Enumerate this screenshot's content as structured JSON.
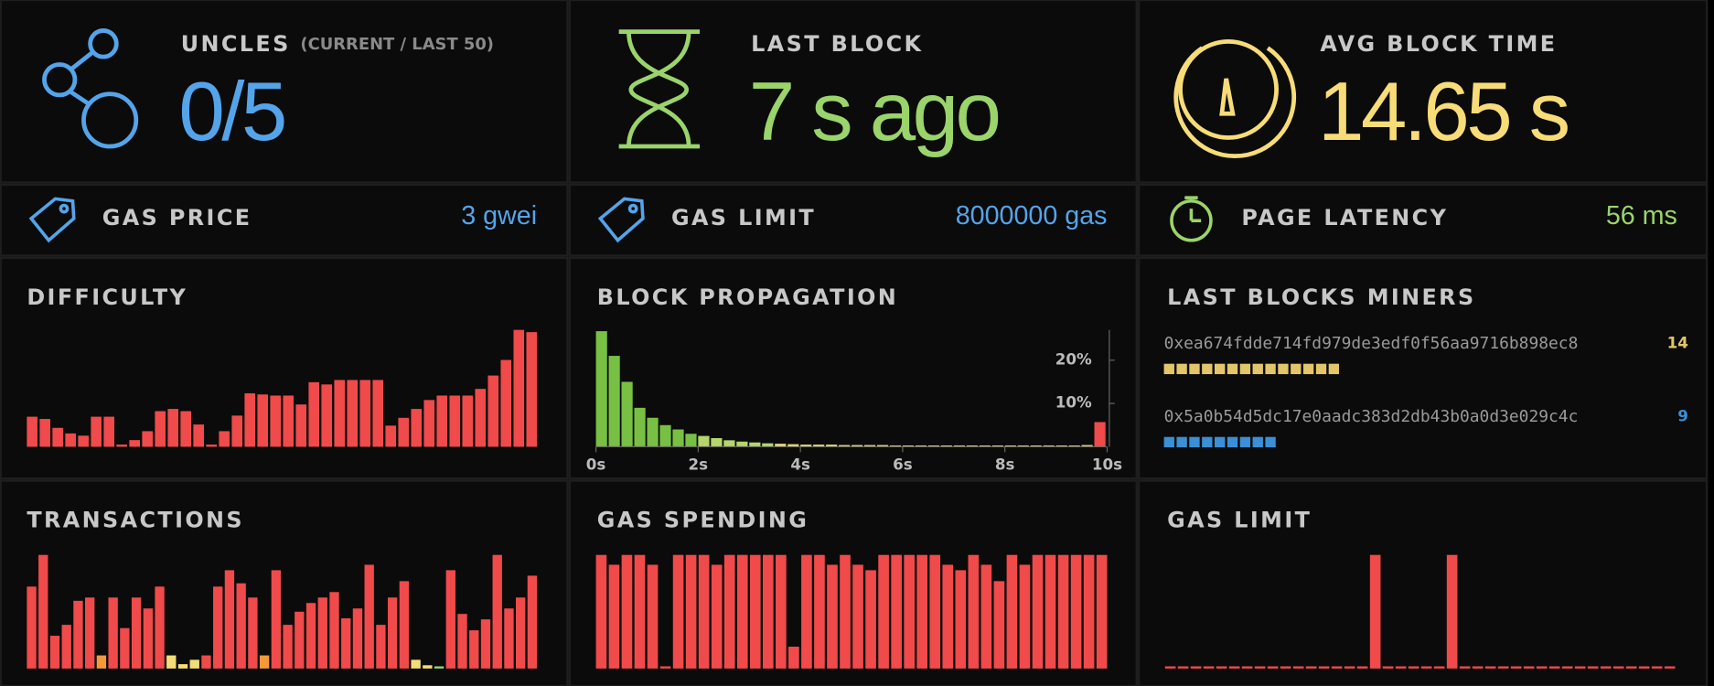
{
  "stats": [
    {
      "title": "UNCLES",
      "subtitle": "(CURRENT / LAST 50)",
      "value": "0/5",
      "color": "#54a4ea"
    },
    {
      "title": "LAST BLOCK",
      "value": "7 s ago",
      "color": "#9ad46a"
    },
    {
      "title": "AVG BLOCK TIME",
      "value": "14.65 s",
      "color": "#f7dc78"
    }
  ],
  "small_stats": [
    {
      "title": "GAS PRICE",
      "value": "3 gwei",
      "color": "#54a4ea"
    },
    {
      "title": "GAS LIMIT",
      "value": "8000000 gas",
      "color": "#54a4ea"
    },
    {
      "title": "PAGE LATENCY",
      "value": "56 ms",
      "color": "#9ad46a"
    }
  ],
  "difficulty": {
    "title": "DIFFICULTY",
    "color": "#f04a4a",
    "values": [
      27,
      25,
      17,
      12,
      10,
      27,
      27,
      2,
      6,
      14,
      32,
      34,
      32,
      20,
      2,
      14,
      28,
      48,
      47,
      46,
      46,
      38,
      58,
      56,
      60,
      60,
      60,
      60,
      19,
      26,
      34,
      42,
      46,
      46,
      46,
      52,
      64,
      78,
      105,
      103
    ]
  },
  "block_propagation": {
    "title": "BLOCK PROPAGATION",
    "type": "histogram",
    "bins": [
      0,
      0.25,
      0.5,
      0.75,
      1,
      1.25,
      1.5,
      1.75,
      2,
      2.25,
      2.5,
      2.75,
      3,
      3.25,
      3.5,
      3.75,
      4,
      4.25,
      4.5,
      4.75,
      5,
      5.25,
      5.5,
      5.75,
      6,
      6.25,
      6.5,
      6.75,
      7,
      7.25,
      7.5,
      7.75,
      8,
      8.25,
      8.5,
      8.75,
      9,
      9.25,
      9.5,
      9.75,
      10
    ],
    "values": [
      26.7,
      21,
      15,
      9,
      6.7,
      5,
      4,
      3,
      2.5,
      2,
      1.5,
      1.2,
      1,
      0.8,
      0.7,
      0.6,
      0.5,
      0.5,
      0.5,
      0.4,
      0.4,
      0.4,
      0.4,
      0.3,
      0.3,
      0.3,
      0.3,
      0.3,
      0.3,
      0.3,
      0.3,
      0.3,
      0.3,
      0.3,
      0.3,
      0.3,
      0.3,
      0.3,
      0.4,
      5.7
    ],
    "colors": [
      "#78c043",
      "#78c043",
      "#78c043",
      "#78c043",
      "#78c043",
      "#78c043",
      "#78c043",
      "#78c043",
      "#b5d66a",
      "#b5d66a",
      "#b5d66a",
      "#b5d66a",
      "#b5d66a",
      "#b5d66a",
      "#e6d87a",
      "#e6d87a",
      "#e6d87a",
      "#e6d87a",
      "#e6d87a",
      "#e6d87a",
      "#e6d87a",
      "#e6d87a",
      "#e6d87a",
      "#e6d87a",
      "#e6d87a",
      "#e6d87a",
      "#e6d87a",
      "#e6d87a",
      "#e6d87a",
      "#e6d87a",
      "#e6d87a",
      "#e6d87a",
      "#e6d87a",
      "#e6d87a",
      "#e6d87a",
      "#e6d87a",
      "#e6d87a",
      "#e6d87a",
      "#e6d87a",
      "#f04a4a"
    ],
    "xlim": [
      0,
      10
    ],
    "xticks": [
      {
        "value": 0,
        "label": "0s"
      },
      {
        "value": 2,
        "label": "2s"
      },
      {
        "value": 4,
        "label": "4s"
      },
      {
        "value": 6,
        "label": "6s"
      },
      {
        "value": 8,
        "label": "8s"
      },
      {
        "value": 10,
        "label": "10s"
      }
    ],
    "ylim": [
      0,
      27
    ],
    "yticks": [
      {
        "value": 10,
        "label": "10%"
      },
      {
        "value": 20,
        "label": "20%"
      }
    ]
  },
  "miners": {
    "title": "LAST BLOCKS MINERS",
    "items": [
      {
        "address": "0xea674fdde714fd979de3edf0f56aa9716b898ec8",
        "count": 14,
        "color": "#e3c56a"
      },
      {
        "address": "0x5a0b54d5dc17e0aadc383d2db43b0a0d3e029c4c",
        "count": 9,
        "color": "#3a8fd6"
      }
    ]
  },
  "transactions": {
    "title": "TRANSACTIONS",
    "values": [
      75,
      104,
      30,
      40,
      62,
      65,
      12,
      65,
      37,
      65,
      55,
      75,
      12,
      4,
      8,
      12,
      75,
      90,
      78,
      65,
      12,
      90,
      40,
      52,
      60,
      65,
      70,
      46,
      55,
      95,
      40,
      65,
      80,
      8,
      3,
      2,
      90,
      50,
      35,
      45,
      104,
      55,
      65,
      85
    ],
    "colors": [
      "#f04a4a",
      "#f04a4a",
      "#f04a4a",
      "#f04a4a",
      "#f04a4a",
      "#f04a4a",
      "#f29a3a",
      "#f04a4a",
      "#f04a4a",
      "#f04a4a",
      "#f04a4a",
      "#f04a4a",
      "#f4dc78",
      "#f4dc78",
      "#f4dc78",
      "#f04a4a",
      "#f04a4a",
      "#f04a4a",
      "#f04a4a",
      "#f04a4a",
      "#f29a3a",
      "#f04a4a",
      "#f04a4a",
      "#f04a4a",
      "#f04a4a",
      "#f04a4a",
      "#f04a4a",
      "#f04a4a",
      "#f04a4a",
      "#f04a4a",
      "#f04a4a",
      "#f04a4a",
      "#f04a4a",
      "#f4dc78",
      "#f4dc78",
      "#9ad46a",
      "#f04a4a",
      "#f04a4a",
      "#f04a4a",
      "#f04a4a",
      "#f04a4a",
      "#f04a4a",
      "#f04a4a",
      "#f04a4a"
    ]
  },
  "gas_spending": {
    "title": "GAS SPENDING",
    "color": "#f04a4a",
    "values": [
      104,
      95,
      104,
      104,
      95,
      2,
      104,
      104,
      104,
      95,
      104,
      104,
      104,
      104,
      104,
      20,
      104,
      104,
      95,
      104,
      95,
      90,
      104,
      104,
      104,
      104,
      104,
      95,
      90,
      104,
      95,
      80,
      104,
      95,
      104,
      104,
      104,
      104,
      104,
      104
    ]
  },
  "gas_limit_chart": {
    "title": "GAS LIMIT",
    "color": "#f04a4a",
    "values": [
      2,
      2,
      2,
      2,
      2,
      2,
      2,
      2,
      2,
      2,
      2,
      2,
      2,
      2,
      2,
      2,
      104,
      2,
      2,
      2,
      2,
      2,
      104,
      2,
      2,
      2,
      2,
      2,
      2,
      2,
      2,
      2,
      2,
      2,
      2,
      2,
      2,
      2,
      2,
      2
    ]
  }
}
